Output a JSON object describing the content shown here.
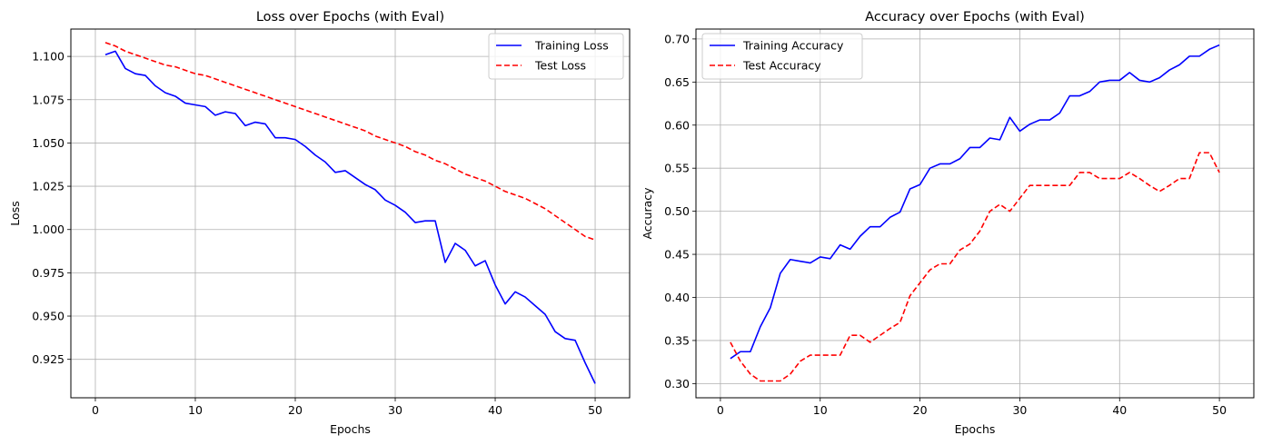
{
  "chart_data": [
    {
      "type": "line",
      "title": "Loss over Epochs (with Eval)",
      "xlabel": "Epochs",
      "ylabel": "Loss",
      "xlim": [
        -2.45,
        53.45
      ],
      "ylim": [
        0.9028,
        1.1158
      ],
      "xticks": [
        0,
        10,
        20,
        30,
        40,
        50
      ],
      "yticks": [
        0.925,
        0.95,
        0.975,
        1.0,
        1.025,
        1.05,
        1.075,
        1.1
      ],
      "ytick_labels": [
        "0.925",
        "0.950",
        "0.975",
        "1.000",
        "1.025",
        "1.050",
        "1.075",
        "1.100"
      ],
      "grid": true,
      "legend_position": "top-right",
      "x": [
        1,
        2,
        3,
        4,
        5,
        6,
        7,
        8,
        9,
        10,
        11,
        12,
        13,
        14,
        15,
        16,
        17,
        18,
        19,
        20,
        21,
        22,
        23,
        24,
        25,
        26,
        27,
        28,
        29,
        30,
        31,
        32,
        33,
        34,
        35,
        36,
        37,
        38,
        39,
        40,
        41,
        42,
        43,
        44,
        45,
        46,
        47,
        48,
        49,
        50
      ],
      "series": [
        {
          "name": "Training Loss",
          "color": "#0000ff",
          "style": "solid",
          "values": [
            1.101,
            1.103,
            1.093,
            1.09,
            1.089,
            1.083,
            1.079,
            1.077,
            1.073,
            1.072,
            1.071,
            1.066,
            1.068,
            1.067,
            1.06,
            1.062,
            1.061,
            1.053,
            1.053,
            1.052,
            1.048,
            1.043,
            1.039,
            1.033,
            1.034,
            1.03,
            1.026,
            1.023,
            1.017,
            1.014,
            1.01,
            1.004,
            1.005,
            1.005,
            0.981,
            0.992,
            0.988,
            0.979,
            0.982,
            0.968,
            0.957,
            0.964,
            0.961,
            0.956,
            0.951,
            0.941,
            0.937,
            0.936,
            0.923,
            0.911
          ]
        },
        {
          "name": "Test Loss",
          "color": "#ff0000",
          "style": "dashed",
          "values": [
            1.108,
            1.106,
            1.103,
            1.101,
            1.099,
            1.097,
            1.095,
            1.094,
            1.092,
            1.09,
            1.089,
            1.087,
            1.085,
            1.083,
            1.081,
            1.079,
            1.077,
            1.075,
            1.073,
            1.071,
            1.069,
            1.067,
            1.065,
            1.063,
            1.061,
            1.059,
            1.057,
            1.054,
            1.052,
            1.05,
            1.048,
            1.045,
            1.043,
            1.04,
            1.038,
            1.035,
            1.032,
            1.03,
            1.028,
            1.025,
            1.022,
            1.02,
            1.018,
            1.015,
            1.012,
            1.008,
            1.004,
            1.0,
            0.996,
            0.994
          ]
        }
      ]
    },
    {
      "type": "line",
      "title": "Accuracy over Epochs (with Eval)",
      "xlabel": "Epochs",
      "ylabel": "Accuracy",
      "xlim": [
        -2.45,
        53.45
      ],
      "ylim": [
        0.2835,
        0.7115
      ],
      "xticks": [
        0,
        10,
        20,
        30,
        40,
        50
      ],
      "yticks": [
        0.3,
        0.35,
        0.4,
        0.45,
        0.5,
        0.55,
        0.6,
        0.65,
        0.7
      ],
      "ytick_labels": [
        "0.30",
        "0.35",
        "0.40",
        "0.45",
        "0.50",
        "0.55",
        "0.60",
        "0.65",
        "0.70"
      ],
      "grid": true,
      "legend_position": "top-left",
      "x": [
        1,
        2,
        3,
        4,
        5,
        6,
        7,
        8,
        9,
        10,
        11,
        12,
        13,
        14,
        15,
        16,
        17,
        18,
        19,
        20,
        21,
        22,
        23,
        24,
        25,
        26,
        27,
        28,
        29,
        30,
        31,
        32,
        33,
        34,
        35,
        36,
        37,
        38,
        39,
        40,
        41,
        42,
        43,
        44,
        45,
        46,
        47,
        48,
        49,
        50
      ],
      "series": [
        {
          "name": "Training Accuracy",
          "color": "#0000ff",
          "style": "solid",
          "values": [
            0.329,
            0.337,
            0.337,
            0.366,
            0.388,
            0.428,
            0.444,
            0.442,
            0.44,
            0.447,
            0.445,
            0.461,
            0.456,
            0.471,
            0.482,
            0.482,
            0.493,
            0.499,
            0.526,
            0.531,
            0.55,
            0.555,
            0.555,
            0.561,
            0.574,
            0.574,
            0.585,
            0.583,
            0.609,
            0.593,
            0.601,
            0.606,
            0.606,
            0.614,
            0.634,
            0.634,
            0.639,
            0.65,
            0.652,
            0.652,
            0.661,
            0.652,
            0.65,
            0.655,
            0.664,
            0.67,
            0.68,
            0.68,
            0.688,
            0.693
          ]
        },
        {
          "name": "Test Accuracy",
          "color": "#ff0000",
          "style": "dashed",
          "values": [
            0.348,
            0.326,
            0.311,
            0.303,
            0.303,
            0.303,
            0.311,
            0.326,
            0.333,
            0.333,
            0.333,
            0.333,
            0.356,
            0.356,
            0.348,
            0.356,
            0.364,
            0.371,
            0.402,
            0.417,
            0.432,
            0.439,
            0.439,
            0.455,
            0.462,
            0.477,
            0.5,
            0.508,
            0.5,
            0.515,
            0.53,
            0.53,
            0.53,
            0.53,
            0.53,
            0.545,
            0.545,
            0.538,
            0.538,
            0.538,
            0.545,
            0.538,
            0.53,
            0.523,
            0.53,
            0.538,
            0.538,
            0.568,
            0.568,
            0.545
          ]
        }
      ]
    }
  ]
}
